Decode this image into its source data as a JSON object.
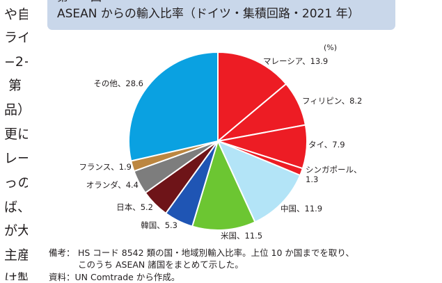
{
  "left_column": {
    "fragments": [
      "や自",
      "ライ",
      "−2−",
      "第",
      "品）",
      "更に",
      "レー",
      "っの",
      "ば、",
      "が大",
      "主産",
      "は製"
    ]
  },
  "header": {
    "cut_label": "第　　図",
    "title": "ASEAN からの輸入比率（ドイツ・集積回路・2021 年）"
  },
  "chart_data": {
    "type": "pie",
    "title": "ASEAN からの輸入比率（ドイツ・集積回路・2021 年）",
    "unit": "(%)",
    "start_angle_deg": 0,
    "direction": "clockwise",
    "slices": [
      {
        "label": "マレーシア、13.9",
        "name": "マレーシア",
        "value": 13.9,
        "color": "#ed1c24"
      },
      {
        "label": "フィリピン、8.2",
        "name": "フィリピン",
        "value": 8.2,
        "color": "#ed1c24"
      },
      {
        "label": "タイ、7.9",
        "name": "タイ",
        "value": 7.9,
        "color": "#ed1c24"
      },
      {
        "label": "シンガポール、\n1.3",
        "name": "シンガポール",
        "value": 1.3,
        "color": "#ed1c24"
      },
      {
        "label": "中国、11.9",
        "name": "中国",
        "value": 11.9,
        "color": "#b3e4f7"
      },
      {
        "label": "米国、11.5",
        "name": "米国",
        "value": 11.5,
        "color": "#6cc632"
      },
      {
        "label": "韓国、5.3",
        "name": "韓国",
        "value": 5.3,
        "color": "#1f55b4"
      },
      {
        "label": "日本、5.2",
        "name": "日本",
        "value": 5.2,
        "color": "#6e1418"
      },
      {
        "label": "オランダ、4.4",
        "name": "オランダ",
        "value": 4.4,
        "color": "#7d7d7d"
      },
      {
        "label": "フランス、1.9",
        "name": "フランス",
        "value": 1.9,
        "color": "#bc8640"
      },
      {
        "label": "その他、28.6",
        "name": "その他",
        "value": 28.6,
        "color": "#0aa1e1"
      }
    ]
  },
  "footnotes": {
    "note_label": "備考：",
    "note_line1": "HS コード 8542 類の国・地域別輸入比率。上位 10 か国までを取り、",
    "note_line2": "このうち ASEAN 諸国をまとめて示した。",
    "source": "資料：UN Comtrade から作成。"
  }
}
